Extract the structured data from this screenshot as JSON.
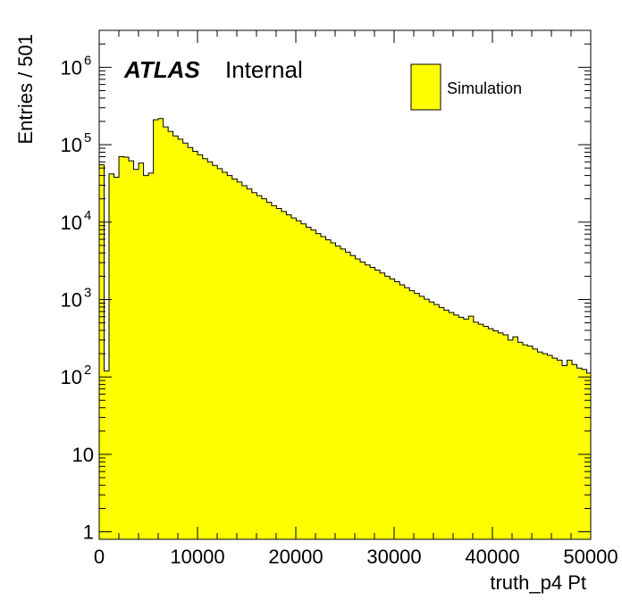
{
  "chart_data": {
    "type": "histogram",
    "xlabel": "truth_p4 Pt",
    "ylabel": "Entries / 501",
    "xlim": [
      0,
      50000
    ],
    "ylim": [
      0.8,
      3000000
    ],
    "y_scale": "log",
    "bin_width": 501,
    "x_ticks": [
      0,
      10000,
      20000,
      30000,
      40000,
      50000
    ],
    "x_tick_labels": [
      "0",
      "10000",
      "20000",
      "30000",
      "40000",
      "50000"
    ],
    "y_tick_labels": [
      {
        "value": 1,
        "base": "1",
        "exp": ""
      },
      {
        "value": 10,
        "base": "10",
        "exp": ""
      },
      {
        "value": 100,
        "base": "10",
        "exp": "2"
      },
      {
        "value": 1000,
        "base": "10",
        "exp": "3"
      },
      {
        "value": 10000,
        "base": "10",
        "exp": "4"
      },
      {
        "value": 100000,
        "base": "10",
        "exp": "5"
      },
      {
        "value": 1000000,
        "base": "10",
        "exp": "6"
      }
    ],
    "series": [
      {
        "name": "Simulation",
        "color": "#ffff00",
        "bin_edges_start": 0,
        "values": [
          55000,
          120,
          42000,
          38000,
          70000,
          69000,
          62000,
          48000,
          58000,
          40000,
          43000,
          210000,
          218000,
          170000,
          148000,
          130000,
          118000,
          105000,
          92000,
          82000,
          74000,
          66000,
          60000,
          54000,
          49000,
          44000,
          40000,
          36000,
          33000,
          29500,
          26800,
          24000,
          22000,
          20000,
          18000,
          16300,
          15000,
          13700,
          12400,
          11300,
          10400,
          9500,
          8600,
          7900,
          7100,
          6500,
          5900,
          5400,
          4900,
          4500,
          4100,
          3700,
          3350,
          3050,
          2800,
          2600,
          2400,
          2200,
          2000,
          1850,
          1700,
          1550,
          1420,
          1300,
          1200,
          1100,
          1010,
          930,
          860,
          790,
          730,
          680,
          630,
          590,
          560,
          610,
          510,
          480,
          450,
          420,
          395,
          370,
          350,
          300,
          330,
          280,
          260,
          250,
          230,
          210,
          200,
          190,
          175,
          165,
          140,
          165,
          145,
          130,
          125,
          112,
          135,
          102,
          110,
          97,
          108,
          98,
          88,
          85,
          77,
          80,
          72,
          78,
          68,
          74
        ]
      }
    ]
  },
  "labels": {
    "atlas": "ATLAS",
    "internal": "Internal",
    "legend": "Simulation"
  },
  "colors": {
    "fill": "#ffff00",
    "line": "#000000",
    "background": "#ffffff"
  }
}
